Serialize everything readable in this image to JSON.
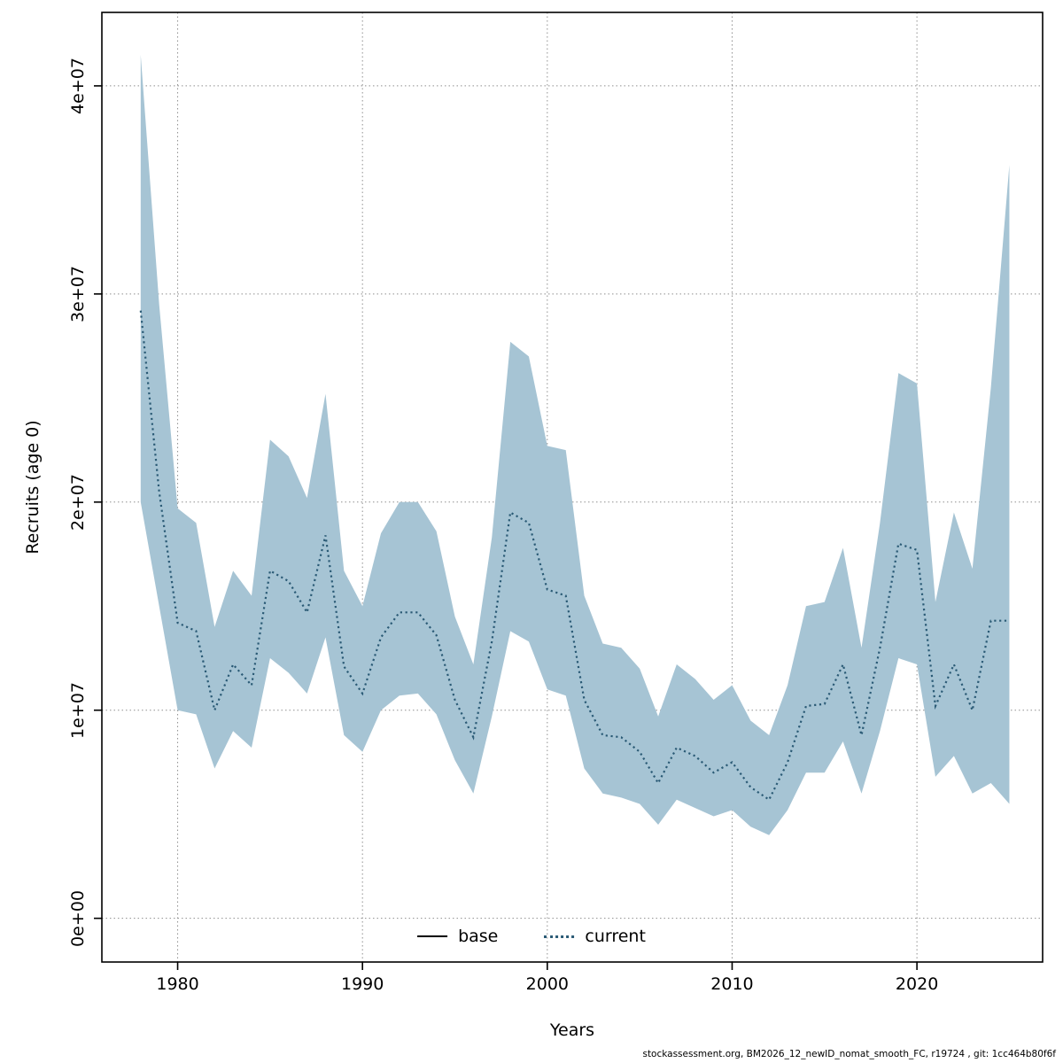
{
  "figure": {
    "ylabel": "Recruits (age 0)",
    "xlabel": "Years",
    "footer": "stockassessment.org, BM2026_12_newID_nomat_smooth_FC, r19724 , git: 1cc464b80f6f",
    "legend": {
      "base": "base",
      "current": "current"
    },
    "colors": {
      "band": "#a6c4d4",
      "current_line": "#2a5a75",
      "base_line": "#000000",
      "grid": "#8f8f8f"
    }
  },
  "chart_data": {
    "type": "line",
    "title": "",
    "xlabel": "Years",
    "ylabel": "Recruits (age 0)",
    "grid": true,
    "legend_position": "bottom-center",
    "xlim": [
      1975.9,
      2026.8
    ],
    "ylim": [
      -2100000.0,
      43530000.0
    ],
    "x_ticks": {
      "values": [
        1980,
        1990,
        2000,
        2010,
        2020
      ],
      "labels": [
        "1980",
        "1990",
        "2000",
        "2010",
        "2020"
      ]
    },
    "y_ticks": {
      "values": [
        0,
        10000000.0,
        20000000.0,
        30000000.0,
        40000000.0
      ],
      "labels": [
        "0e+00",
        "1e+07",
        "2e+07",
        "3e+07",
        "4e+07"
      ]
    },
    "x": [
      1978,
      1979,
      1980,
      1981,
      1982,
      1983,
      1984,
      1985,
      1986,
      1987,
      1988,
      1989,
      1990,
      1991,
      1992,
      1993,
      1994,
      1995,
      1996,
      1997,
      1998,
      1999,
      2000,
      2001,
      2002,
      2003,
      2004,
      2005,
      2006,
      2007,
      2008,
      2009,
      2010,
      2011,
      2012,
      2013,
      2014,
      2015,
      2016,
      2017,
      2018,
      2019,
      2020,
      2021,
      2022,
      2023,
      2024,
      2025
    ],
    "band_color": "#a6c4d4",
    "series": [
      {
        "name": "current",
        "style": "dotted",
        "color": "#2a5a75",
        "values": [
          29200000.0,
          20500000.0,
          14200000.0,
          13800000.0,
          10000000.0,
          12200000.0,
          11200000.0,
          16700000.0,
          16200000.0,
          14700000.0,
          18400000.0,
          12100000.0,
          10800000.0,
          13500000.0,
          14700000.0,
          14700000.0,
          13600000.0,
          10500000.0,
          8700000.0,
          13300000.0,
          19500000.0,
          19000000.0,
          15800000.0,
          15500000.0,
          10500000.0,
          8800000.0,
          8700000.0,
          8000000.0,
          6500000.0,
          8200000.0,
          7800000.0,
          7000000.0,
          7500000.0,
          6300000.0,
          5700000.0,
          7500000.0,
          10200000.0,
          10300000.0,
          12200000.0,
          8800000.0,
          13000000.0,
          18000000.0,
          17700000.0,
          10200000.0,
          12200000.0,
          10000000.0,
          14300000.0,
          14300000.0
        ]
      },
      {
        "name": "current_ci_upper",
        "style": "band-edge",
        "color": "#a6c4d4",
        "values": [
          41500000.0,
          29500000.0,
          19700000.0,
          19000000.0,
          14000000.0,
          16700000.0,
          15500000.0,
          23000000.0,
          22200000.0,
          20200000.0,
          25200000.0,
          16700000.0,
          15000000.0,
          18500000.0,
          20000000.0,
          20000000.0,
          18600000.0,
          14500000.0,
          12200000.0,
          18300000.0,
          27700000.0,
          27000000.0,
          22700000.0,
          22500000.0,
          15500000.0,
          13200000.0,
          13000000.0,
          12000000.0,
          9700000.0,
          12200000.0,
          11500000.0,
          10500000.0,
          11200000.0,
          9500000.0,
          8800000.0,
          11200000.0,
          15000000.0,
          15200000.0,
          17800000.0,
          13000000.0,
          19000000.0,
          26200000.0,
          25700000.0,
          15200000.0,
          19500000.0,
          16800000.0,
          25500000.0,
          36200000.0
        ]
      },
      {
        "name": "current_ci_lower",
        "style": "band-edge",
        "color": "#a6c4d4",
        "values": [
          20000000.0,
          15000000.0,
          10000000.0,
          9800000.0,
          7200000.0,
          9000000.0,
          8200000.0,
          12500000.0,
          11800000.0,
          10800000.0,
          13500000.0,
          8800000.0,
          8000000.0,
          10000000.0,
          10700000.0,
          10800000.0,
          9800000.0,
          7600000.0,
          6000000.0,
          9700000.0,
          13800000.0,
          13300000.0,
          11000000.0,
          10700000.0,
          7200000.0,
          6000000.0,
          5800000.0,
          5500000.0,
          4500000.0,
          5700000.0,
          5300000.0,
          4900000.0,
          5200000.0,
          4400000.0,
          4000000.0,
          5200000.0,
          7000000.0,
          7000000.0,
          8500000.0,
          6000000.0,
          9000000.0,
          12500000.0,
          12200000.0,
          6800000.0,
          7800000.0,
          6000000.0,
          6500000.0,
          5500000.0
        ]
      }
    ]
  }
}
